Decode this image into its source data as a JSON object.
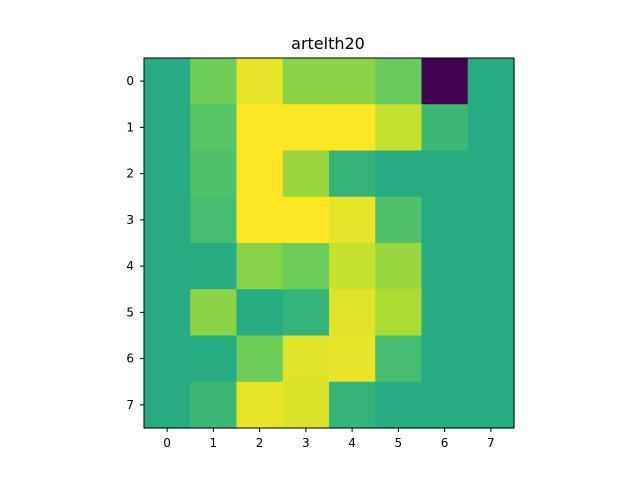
{
  "chart_data": {
    "type": "heatmap",
    "title": "artelth20",
    "xlabel": "",
    "ylabel": "",
    "x_ticks": [
      "0",
      "1",
      "2",
      "3",
      "4",
      "5",
      "6",
      "7"
    ],
    "y_ticks": [
      "0",
      "1",
      "2",
      "3",
      "4",
      "5",
      "6",
      "7"
    ],
    "colormap": "viridis",
    "vmin": 0,
    "vmax": 1,
    "grid": false,
    "values": [
      [
        0.62,
        0.78,
        0.97,
        0.83,
        0.83,
        0.77,
        0.0,
        0.62
      ],
      [
        0.62,
        0.74,
        1.0,
        1.0,
        1.0,
        0.92,
        0.68,
        0.62
      ],
      [
        0.62,
        0.72,
        1.0,
        0.85,
        0.66,
        0.62,
        0.62,
        0.62
      ],
      [
        0.62,
        0.7,
        1.0,
        1.0,
        0.97,
        0.72,
        0.62,
        0.62
      ],
      [
        0.62,
        0.63,
        0.82,
        0.78,
        0.92,
        0.85,
        0.62,
        0.62
      ],
      [
        0.62,
        0.83,
        0.63,
        0.66,
        0.96,
        0.88,
        0.62,
        0.62
      ],
      [
        0.62,
        0.63,
        0.78,
        0.96,
        0.97,
        0.7,
        0.62,
        0.62
      ],
      [
        0.62,
        0.68,
        0.97,
        0.95,
        0.66,
        0.62,
        0.62,
        0.62
      ]
    ]
  }
}
